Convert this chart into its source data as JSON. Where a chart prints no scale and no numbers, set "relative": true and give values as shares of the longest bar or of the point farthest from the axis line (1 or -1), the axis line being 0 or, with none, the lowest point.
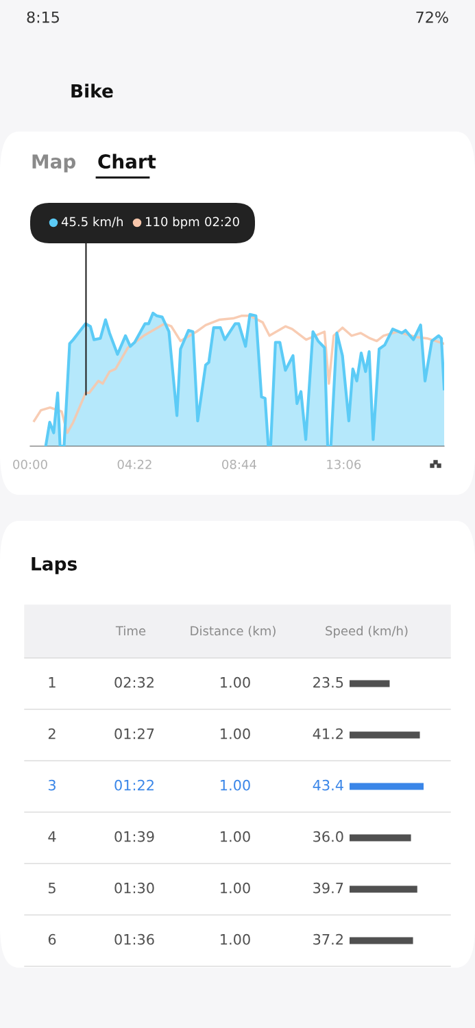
{
  "chart_data": [
    {
      "type": "area",
      "relative": true,
      "title": "Bike",
      "annotations": [
        "8:15",
        "72%",
        "Map",
        "Chart",
        "45.5 km/h",
        "110 bpm",
        "02:20"
      ],
      "xlim": [
        0,
        1038
      ],
      "xticks": [
        {
          "value": 0,
          "label": "00:00"
        },
        {
          "value": 262,
          "label": "04:22"
        },
        {
          "value": 524,
          "label": "08:44"
        },
        {
          "value": 786,
          "label": "13:06"
        }
      ],
      "ref_lines": [
        {
          "axis": "x",
          "value": 140,
          "color": "#222222"
        }
      ],
      "legend": false,
      "grid": false,
      "marker": "none",
      "line_style": "solid",
      "series": [
        {
          "type": "area",
          "color": "#5ccbf6",
          "x": [
            39,
            49,
            59,
            69,
            75,
            85,
            99,
            108,
            139,
            151,
            160,
            176,
            189,
            199,
            219,
            239,
            251,
            262,
            288,
            297,
            308,
            317,
            331,
            348,
            368,
            377,
            397,
            408,
            420,
            440,
            448,
            460,
            477,
            488,
            514,
            523,
            540,
            551,
            566,
            580,
            589,
            597,
            603,
            615,
            626,
            640,
            659,
            669,
            679,
            691,
            709,
            722,
            738,
            746,
            754,
            769,
            783,
            799,
            809,
            819,
            830,
            841,
            850,
            860,
            875,
            889,
            909,
            932,
            941,
            961,
            979,
            990,
            1007,
            1024,
            1031,
            1038
          ],
          "values": [
            0.0,
            0.18,
            0.1,
            0.4,
            0.0,
            0.0,
            0.77,
            0.8,
            0.92,
            0.9,
            0.8,
            0.81,
            0.95,
            0.85,
            0.69,
            0.83,
            0.75,
            0.78,
            0.92,
            0.92,
            1.0,
            0.98,
            0.97,
            0.86,
            0.23,
            0.73,
            0.87,
            0.86,
            0.19,
            0.61,
            0.63,
            0.89,
            0.89,
            0.8,
            0.92,
            0.92,
            0.75,
            0.99,
            0.98,
            0.37,
            0.36,
            0.0,
            0.0,
            0.78,
            0.78,
            0.57,
            0.68,
            0.32,
            0.41,
            0.05,
            0.86,
            0.79,
            0.74,
            0.0,
            0.0,
            0.85,
            0.68,
            0.19,
            0.58,
            0.49,
            0.7,
            0.56,
            0.71,
            0.05,
            0.73,
            0.76,
            0.88,
            0.85,
            0.87,
            0.8,
            0.91,
            0.49,
            0.79,
            0.83,
            0.81,
            0.43
          ]
        },
        {
          "type": "line",
          "color": "#f7c6ab",
          "x": [
            10,
            27,
            50,
            79,
            93,
            108,
            139,
            148,
            171,
            182,
            199,
            214,
            245,
            285,
            337,
            354,
            377,
            417,
            440,
            474,
            509,
            531,
            551,
            583,
            600,
            640,
            657,
            692,
            738,
            749,
            761,
            783,
            806,
            829,
            852,
            869,
            886,
            921,
            967,
            995,
            1038
          ],
          "values": [
            0.19,
            0.27,
            0.29,
            0.26,
            0.1,
            0.18,
            0.4,
            0.4,
            0.49,
            0.47,
            0.56,
            0.58,
            0.74,
            0.83,
            0.92,
            0.9,
            0.79,
            0.86,
            0.91,
            0.95,
            0.96,
            0.98,
            0.98,
            0.93,
            0.83,
            0.9,
            0.88,
            0.8,
            0.86,
            0.47,
            0.83,
            0.89,
            0.83,
            0.85,
            0.81,
            0.79,
            0.83,
            0.86,
            0.82,
            0.81,
            0.77
          ]
        }
      ]
    },
    {
      "type": "bar",
      "orientation": "horizontal",
      "categories": [
        "1",
        "2",
        "3",
        "4",
        "5",
        "6"
      ],
      "values": [
        23.5,
        41.2,
        43.4,
        36.0,
        39.7,
        37.2
      ],
      "colors": [
        "#505050",
        "#505050",
        "#3a86e8",
        "#505050",
        "#505050",
        "#505050"
      ],
      "value_labels": [
        "23.5",
        "41.2",
        "43.4",
        "36.0",
        "39.7",
        "37.2"
      ],
      "annotations": [
        "Laps",
        "Time",
        "Distance (km)",
        "Speed (km/h)",
        "02:32",
        "1.00",
        "01:27",
        "1.00",
        "01:22",
        "1.00",
        "01:39",
        "1.00",
        "01:30",
        "1.00",
        "01:36",
        "1.00"
      ]
    }
  ]
}
